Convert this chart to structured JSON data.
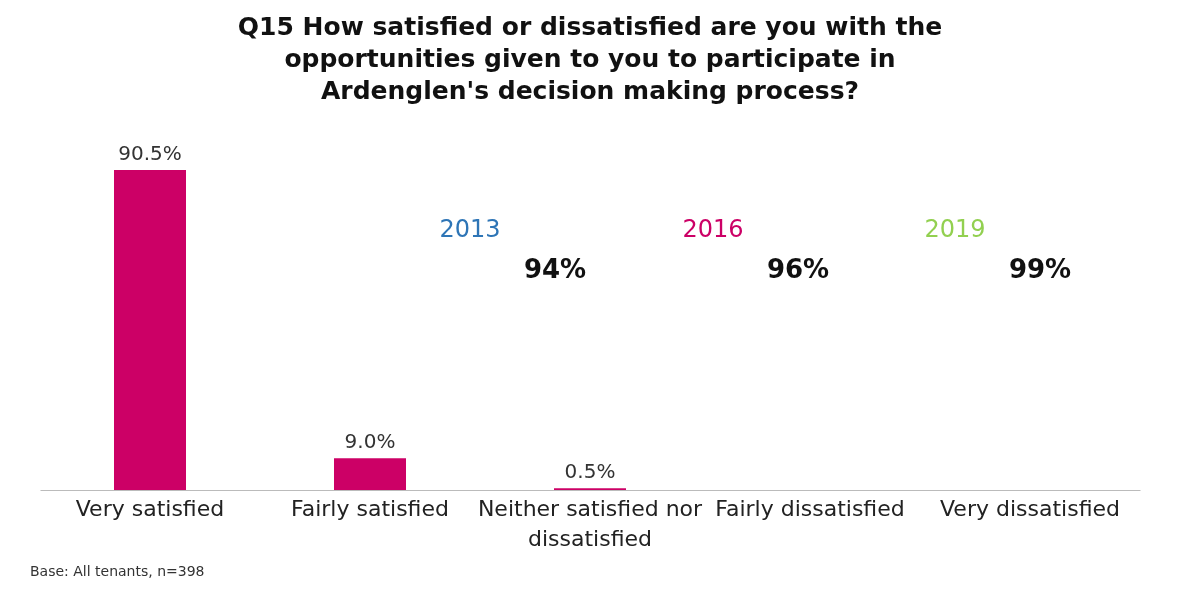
{
  "chart_data": {
    "type": "bar",
    "title": "Q15 How satisfied or dissatisfied are you with the opportunities given to you to participate in Ardenglen's decision making process?",
    "categories": [
      "Very satisfied",
      "Fairly satisfied",
      "Neither satisfied nor dissatisfied",
      "Fairly dissatisfied",
      "Very dissatisfied"
    ],
    "values": [
      90.5,
      9.0,
      0.5,
      null,
      null
    ],
    "value_labels": [
      "90.5%",
      "9.0%",
      "0.5%",
      null,
      null
    ],
    "color": "#cc0066",
    "annotations": [
      "2013",
      "94%",
      "2016",
      "96%",
      "2019",
      "99%",
      "Base: All tenants, n=398"
    ]
  }
}
